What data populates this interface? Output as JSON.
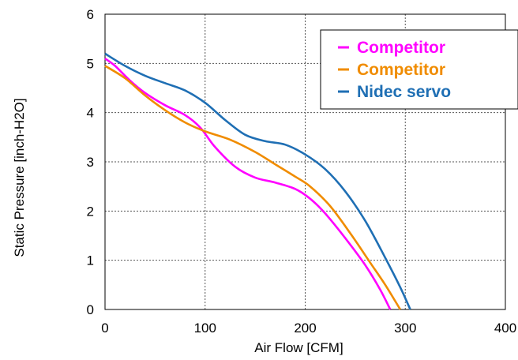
{
  "chart_data": {
    "type": "line",
    "xlabel": "Air Flow [CFM]",
    "ylabel": "Static Pressure [inch-H2O]",
    "xlim": [
      0,
      400
    ],
    "ylim": [
      0,
      6
    ],
    "xticks": [
      "0",
      "100",
      "200",
      "300",
      "400"
    ],
    "yticks": [
      "0",
      "1",
      "2",
      "3",
      "4",
      "5",
      "6"
    ],
    "grid": true,
    "legend_position": "top-right",
    "series": [
      {
        "name": "Competitor",
        "color": "#ff00ff",
        "points": [
          [
            0,
            5.1
          ],
          [
            10,
            4.95
          ],
          [
            25,
            4.65
          ],
          [
            40,
            4.4
          ],
          [
            60,
            4.15
          ],
          [
            80,
            3.95
          ],
          [
            95,
            3.7
          ],
          [
            110,
            3.3
          ],
          [
            130,
            2.9
          ],
          [
            150,
            2.68
          ],
          [
            170,
            2.58
          ],
          [
            190,
            2.45
          ],
          [
            205,
            2.25
          ],
          [
            220,
            1.95
          ],
          [
            240,
            1.45
          ],
          [
            260,
            0.9
          ],
          [
            275,
            0.4
          ],
          [
            285,
            0.0
          ]
        ]
      },
      {
        "name": "Competitor",
        "color": "#f08c00",
        "points": [
          [
            0,
            4.95
          ],
          [
            20,
            4.7
          ],
          [
            40,
            4.35
          ],
          [
            60,
            4.05
          ],
          [
            80,
            3.8
          ],
          [
            100,
            3.62
          ],
          [
            125,
            3.45
          ],
          [
            150,
            3.2
          ],
          [
            170,
            2.95
          ],
          [
            190,
            2.7
          ],
          [
            205,
            2.5
          ],
          [
            225,
            2.1
          ],
          [
            245,
            1.55
          ],
          [
            265,
            0.95
          ],
          [
            280,
            0.5
          ],
          [
            295,
            0.0
          ]
        ]
      },
      {
        "name": "Nidec servo",
        "color": "#1f6fb4",
        "points": [
          [
            0,
            5.2
          ],
          [
            20,
            4.95
          ],
          [
            40,
            4.75
          ],
          [
            60,
            4.6
          ],
          [
            80,
            4.45
          ],
          [
            100,
            4.2
          ],
          [
            120,
            3.85
          ],
          [
            140,
            3.55
          ],
          [
            160,
            3.42
          ],
          [
            180,
            3.35
          ],
          [
            200,
            3.15
          ],
          [
            220,
            2.85
          ],
          [
            240,
            2.4
          ],
          [
            260,
            1.8
          ],
          [
            280,
            1.05
          ],
          [
            295,
            0.45
          ],
          [
            305,
            0.0
          ]
        ]
      }
    ]
  }
}
